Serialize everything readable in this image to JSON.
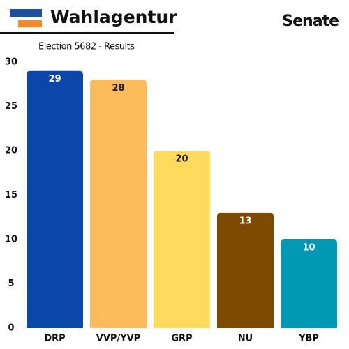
{
  "header": {
    "brand": "Wahlagentur",
    "chamber": "Senate"
  },
  "chart_data": {
    "type": "bar",
    "title": "Election 5682 - Results",
    "categories": [
      "DRP",
      "VVP/YVP",
      "GRP",
      "NU",
      "YBP"
    ],
    "values": [
      29,
      28,
      20,
      13,
      10
    ],
    "colors": [
      "#0a47a9",
      "#fdbb5a",
      "#fedb5c",
      "#7c4a00",
      "#0099b4"
    ],
    "label_colors": [
      "#ffffff",
      "#1a1a1a",
      "#1a1a1a",
      "#ffffff",
      "#ffffff"
    ],
    "ylim": [
      0,
      30
    ],
    "yticks": [
      0,
      5,
      10,
      15,
      20,
      25,
      30
    ],
    "grid": false
  }
}
